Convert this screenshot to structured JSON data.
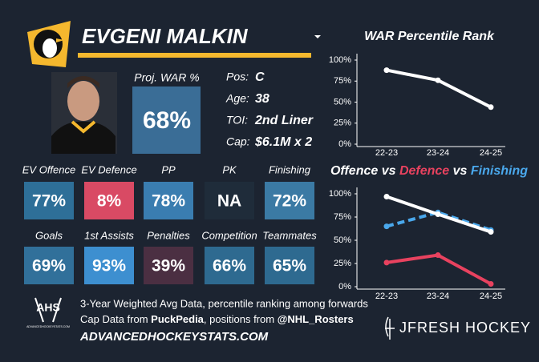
{
  "header": {
    "name": "EVGENI MALKIN"
  },
  "summary": {
    "label": "Proj. WAR %",
    "value": "68%",
    "color": "#3a6d96"
  },
  "info": [
    {
      "label": "Pos:",
      "value": "C"
    },
    {
      "label": "Age:",
      "value": "38"
    },
    {
      "label": "TOI:",
      "value": "2nd Liner"
    },
    {
      "label": "Cap:",
      "value": "$6.1M x 2"
    }
  ],
  "tiles": [
    {
      "label": "EV Offence",
      "value": "77%",
      "color": "#2e6f98"
    },
    {
      "label": "EV Defence",
      "value": "8%",
      "color": "#d94a64"
    },
    {
      "label": "PP",
      "value": "78%",
      "color": "#3a7db0"
    },
    {
      "label": "PK",
      "value": "NA",
      "color": "#1f2c3a"
    },
    {
      "label": "Finishing",
      "value": "72%",
      "color": "#3b7aa4"
    },
    {
      "label": "Goals",
      "value": "69%",
      "color": "#31709a"
    },
    {
      "label": "1st Assists",
      "value": "93%",
      "color": "#3d8fd0"
    },
    {
      "label": "Penalties",
      "value": "39%",
      "color": "#4b2f42"
    },
    {
      "label": "Competition",
      "value": "66%",
      "color": "#2e6a90"
    },
    {
      "label": "Teammates",
      "value": "65%",
      "color": "#2e6a90"
    }
  ],
  "footer": {
    "ahs_logo": {
      "text": "AHS",
      "subtext": "ADVANCEDHOCKEYSTATS.COM"
    },
    "note": "3-Year Weighted Avg Data, percentile ranking among forwards",
    "credits": [
      {
        "text": "Cap Data from ",
        "bold": false
      },
      {
        "text": "PuckPedia",
        "bold": true
      },
      {
        "text": ", positions from ",
        "bold": false
      },
      {
        "text": "@NHL_Rosters",
        "bold": true
      }
    ],
    "website": "ADVANCEDHOCKEYSTATS.COM",
    "brand": "JFRESH HOCKEY"
  },
  "chart_data": [
    {
      "type": "line",
      "title_parts": [
        {
          "text": "WAR Percentile Rank",
          "color": "#ffffff"
        }
      ],
      "categories": [
        "22-23",
        "23-24",
        "24-25"
      ],
      "series": [
        {
          "color": "#ffffff",
          "dashed": false,
          "values": [
            88,
            76,
            44
          ]
        }
      ],
      "ylim": [
        0,
        100
      ],
      "yticks": [
        {
          "value": 0,
          "label": "0%"
        },
        {
          "value": 25,
          "label": "25%"
        },
        {
          "value": 50,
          "label": "50%"
        },
        {
          "value": 75,
          "label": "75%"
        },
        {
          "value": 100,
          "label": "100%"
        }
      ]
    },
    {
      "type": "line",
      "title_parts": [
        {
          "text": "Offence",
          "color": "#ffffff"
        },
        {
          "text": " vs ",
          "color": "#ffffff"
        },
        {
          "text": "Defence",
          "color": "#e8425f"
        },
        {
          "text": " vs ",
          "color": "#ffffff"
        },
        {
          "text": "Finishing",
          "color": "#4aa8ec"
        }
      ],
      "categories": [
        "22-23",
        "23-24",
        "24-25"
      ],
      "series": [
        {
          "color": "#4aa8ec",
          "dashed": true,
          "values": [
            65,
            80,
            61
          ]
        },
        {
          "color": "#ffffff",
          "dashed": false,
          "values": [
            97,
            78,
            59
          ]
        },
        {
          "color": "#e8425f",
          "dashed": false,
          "values": [
            26,
            34,
            3
          ]
        }
      ],
      "ylim": [
        0,
        100
      ],
      "yticks": [
        {
          "value": 0,
          "label": "0%"
        },
        {
          "value": 25,
          "label": "25%"
        },
        {
          "value": 50,
          "label": "50%"
        },
        {
          "value": 75,
          "label": "75%"
        },
        {
          "value": 100,
          "label": "100%"
        }
      ]
    }
  ]
}
